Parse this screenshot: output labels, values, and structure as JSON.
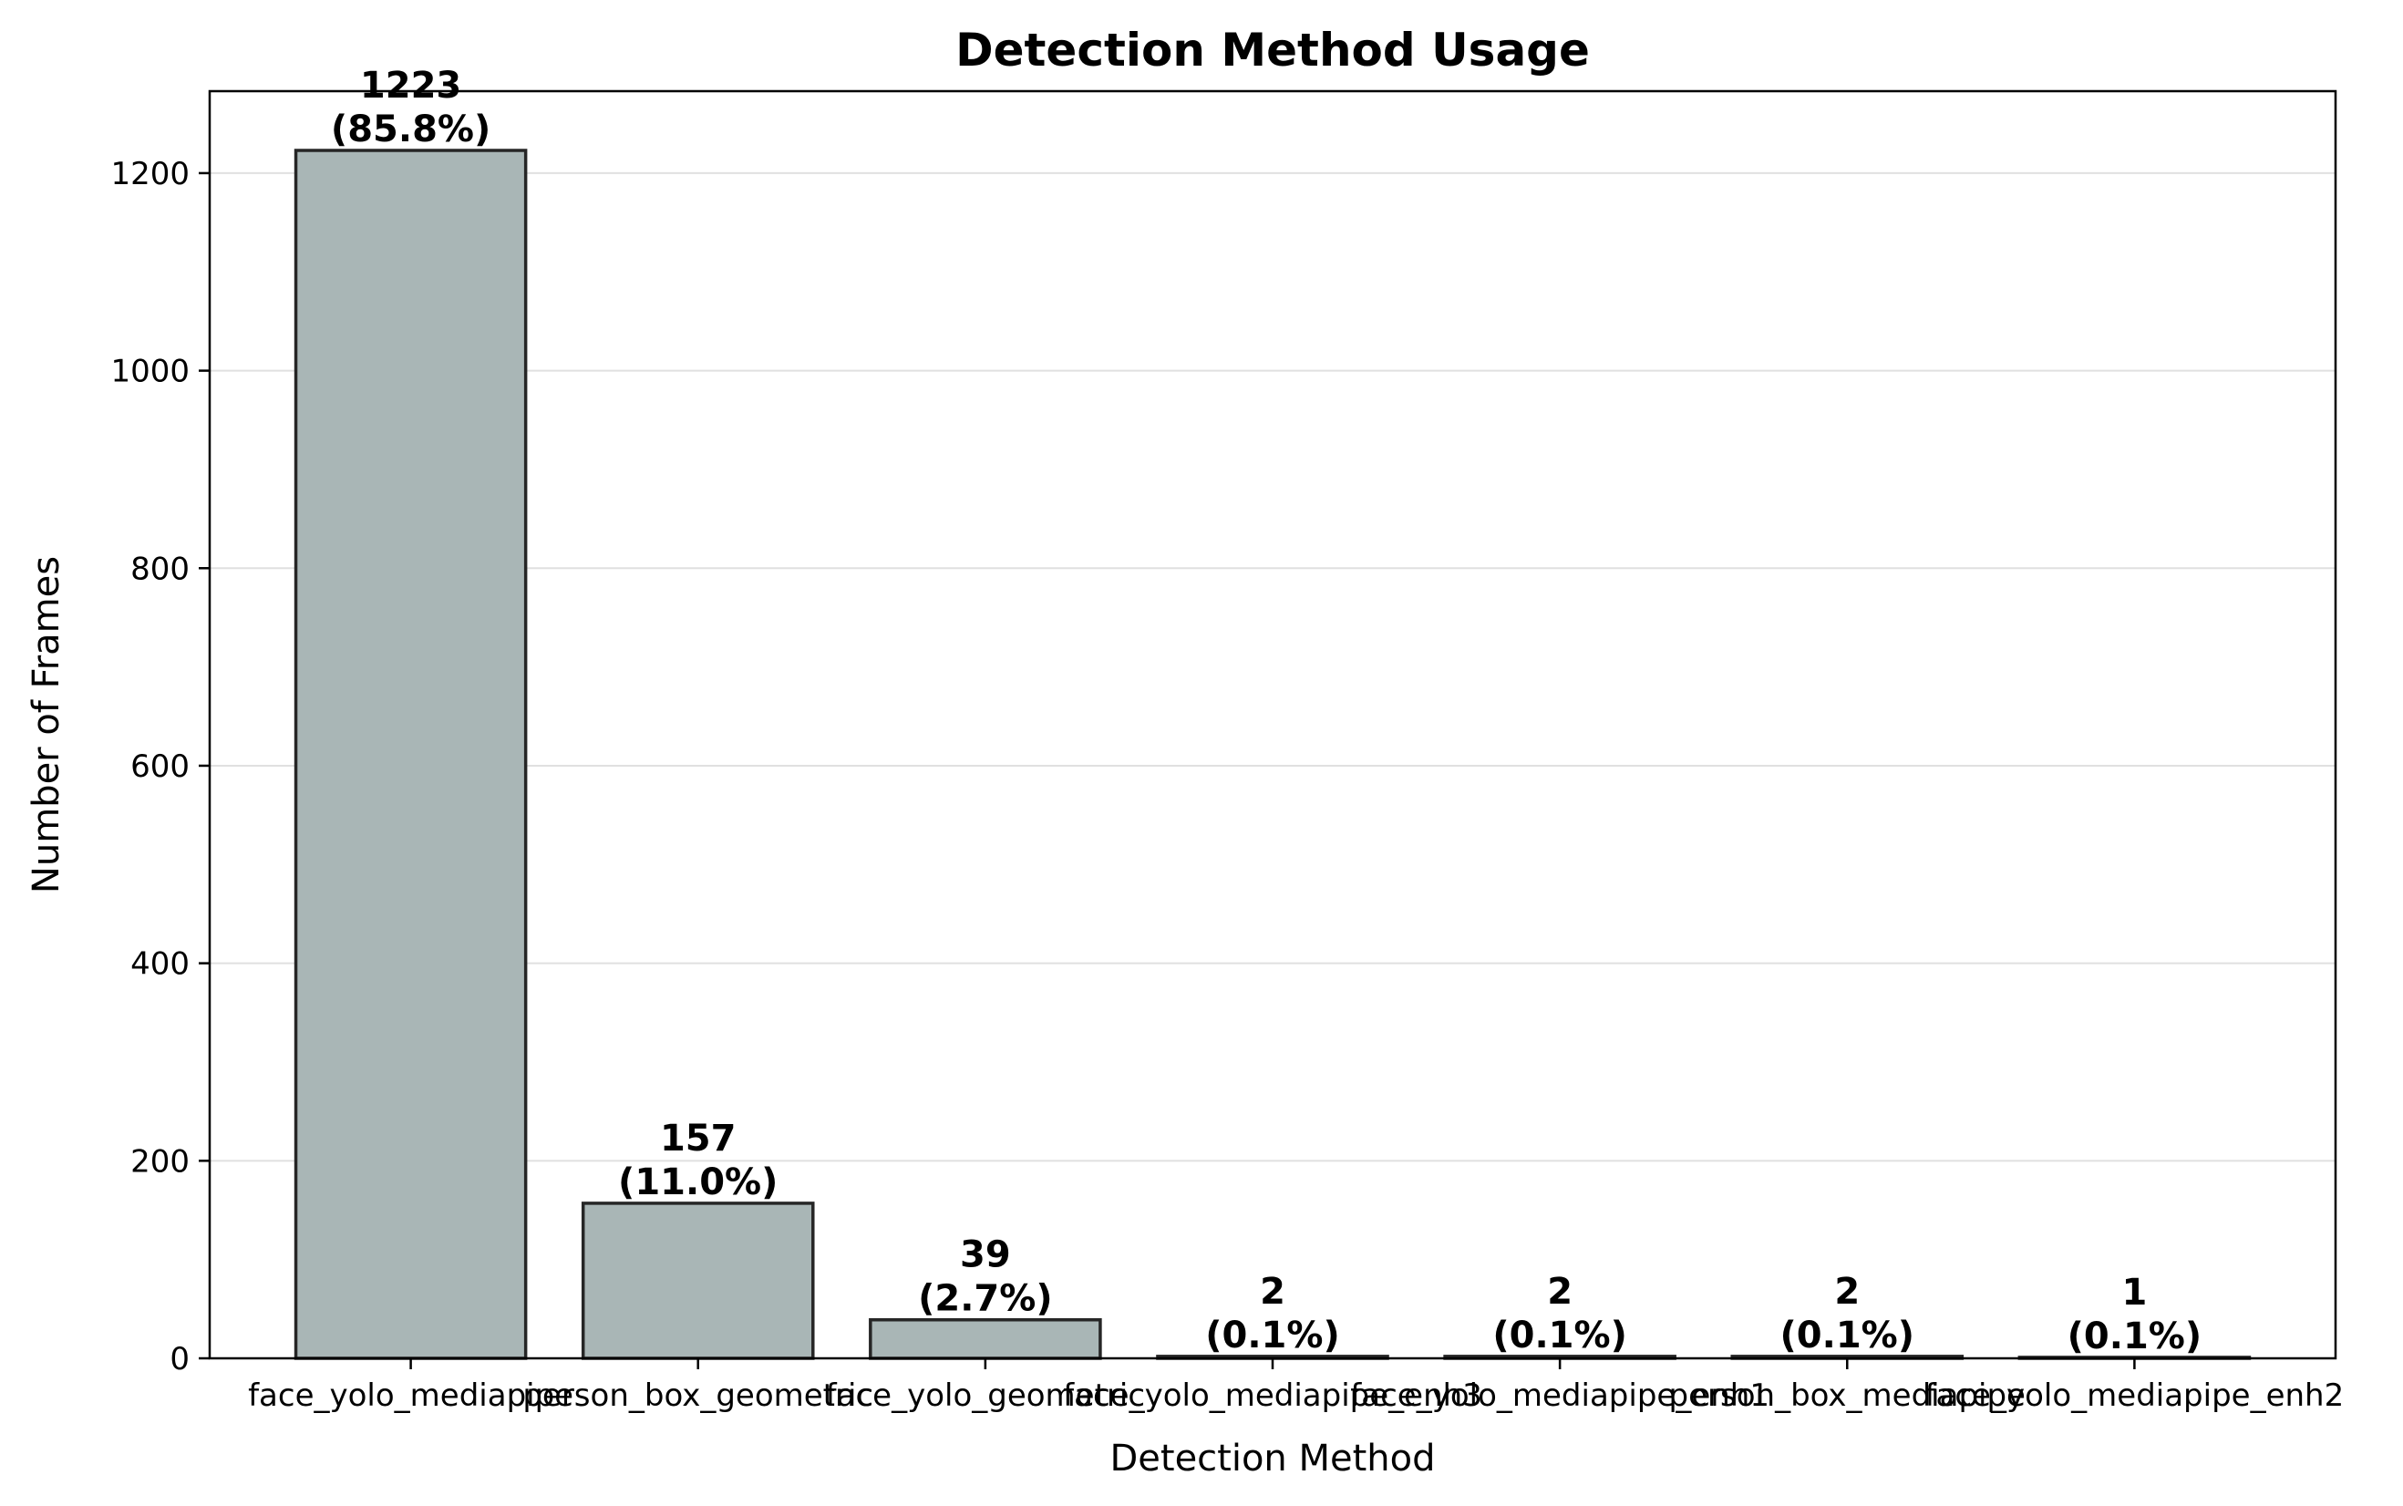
{
  "chart_data": {
    "type": "bar",
    "title": "Detection Method Usage",
    "xlabel": "Detection Method",
    "ylabel": "Number of Frames",
    "categories": [
      "face_yolo_mediapipe",
      "person_box_geometric",
      "face_yolo_geometric",
      "face_yolo_mediapipe_enh3",
      "face_yolo_mediapipe_enh1",
      "person_box_mediapipe",
      "face_yolo_mediapipe_enh2"
    ],
    "values": [
      1223,
      157,
      39,
      2,
      2,
      2,
      1
    ],
    "percent_labels": [
      "(85.8%)",
      "(11.0%)",
      "(2.7%)",
      "(0.1%)",
      "(0.1%)",
      "(0.1%)",
      "(0.1%)"
    ],
    "ylim": [
      0,
      1283
    ],
    "yticks": [
      0,
      200,
      400,
      600,
      800,
      1000,
      1200
    ],
    "grid": "y",
    "bar_color": "#a9b6b6",
    "edge_color": "#262626"
  }
}
